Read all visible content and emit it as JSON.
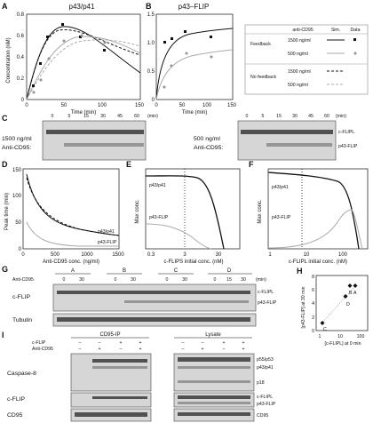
{
  "panelA": {
    "letter": "A",
    "title": "p43/p41",
    "ylabel": "Concentration (nM)",
    "xlabel": "Time (min)",
    "yticks": [
      "0",
      "0.2",
      "0.4",
      "0.6",
      "0.8"
    ],
    "xticks": [
      "0",
      "50",
      "100",
      "150"
    ]
  },
  "panelB": {
    "letter": "B",
    "title": "p43–FLIP",
    "yticks": [
      "0",
      "0.5",
      "1.0",
      "1.5"
    ],
    "xticks": [
      "0",
      "50",
      "100",
      "150"
    ],
    "xlabel": "Time (min)"
  },
  "legend": {
    "h_anti": "anti-CD95",
    "h_sim": "Sim.",
    "h_data": "Data",
    "feedback": "Feedback",
    "nofeedback": "No feedback",
    "c1500": "1500 ng/ml",
    "c500": "500 ng/ml",
    "c1500b": "1500 ng/ml",
    "c500b": "500 ng/ml"
  },
  "panelC": {
    "letter": "C",
    "unit_l": "(min)",
    "unit_r": "(min)",
    "left_label1": "1500 ng/ml",
    "left_label2": "Anti-CD95:",
    "right_label1": "500 ng/ml",
    "right_label2": "Anti-CD95:",
    "times": [
      "0",
      "5",
      "15",
      "30",
      "45",
      "60"
    ],
    "band1": "c-FLIPL",
    "band2": "p43-FLIP"
  },
  "panelD": {
    "letter": "D",
    "ylabel": "Peak time (min)",
    "xlabel": "Anti-CD95 conc. (ng/ml)",
    "yticks": [
      "0",
      "50",
      "100",
      "150"
    ],
    "xticks": [
      "0",
      "500",
      "1000",
      "1500"
    ],
    "lab1": "p43/p41",
    "lab2": "p43-FLIP"
  },
  "panelE": {
    "letter": "E",
    "ylabel": "Max conc.",
    "xlabel": "c-FLIPS initial conc. (nM)",
    "xticks": [
      "0.3",
      "3",
      "30"
    ],
    "lab1": "p43/p41",
    "lab2": "p43-FLIP"
  },
  "panelF": {
    "letter": "F",
    "ylabel": "Max conc.",
    "xlabel": "c-FLIPL initial conc. (nM)",
    "xticks": [
      "1",
      "10",
      "100"
    ],
    "lab1": "p43/p41",
    "lab2": "p43-FLIP"
  },
  "panelG": {
    "letter": "G",
    "anti_label": "Anti-CD95",
    "unit": "(min)",
    "groups": [
      "A",
      "B",
      "C",
      "D"
    ],
    "times": [
      "0",
      "30",
      "0",
      "30",
      "0",
      "30",
      "0",
      "15",
      "30"
    ],
    "row1": "c-FLIP",
    "row2": "Tubulin",
    "band1": "c-FLIPL",
    "band2": "p43-FLIP"
  },
  "panelH": {
    "letter": "H",
    "ylabel": "[p43-FLIP] at 30 min",
    "xlabel": "[c-FLIPL] at 0 min",
    "yticks": [
      "0",
      "2",
      "4",
      "6",
      "8"
    ],
    "xticks": [
      "1",
      "10",
      "100"
    ],
    "points": [
      "B",
      "A",
      "D",
      "C"
    ]
  },
  "panelI": {
    "letter": "I",
    "ip": "CD95-IP",
    "lysate": "Lysate",
    "cflip_row": "c-FLIP",
    "anti_row": "Anti-CD95",
    "pm_top": [
      "–",
      "–",
      "+",
      "+",
      "–",
      "–",
      "+",
      "+"
    ],
    "pm_bot": [
      "–",
      "+",
      "–",
      "+",
      "–",
      "+",
      "–",
      "+"
    ],
    "rows": [
      "Caspase-8",
      "c-FLIP",
      "CD95"
    ],
    "bands": [
      "p55/p53",
      "p43/p41",
      "p18",
      "c-FLIPL",
      "p43-FLIP",
      "CD95"
    ]
  }
}
